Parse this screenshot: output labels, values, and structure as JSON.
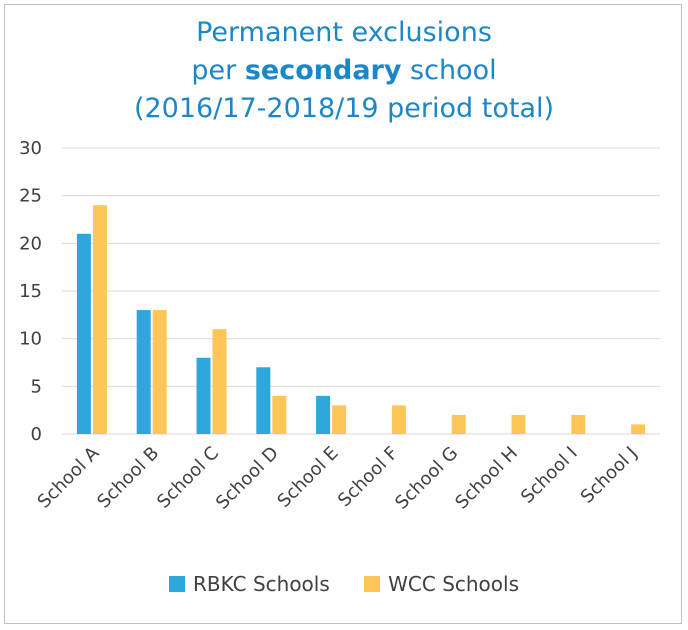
{
  "chart_data": {
    "type": "bar",
    "title_lines": [
      "Permanent exclusions",
      "per",
      "secondary",
      "school",
      "(2016/17-2018/19 period total)"
    ],
    "categories": [
      "School A",
      "School B",
      "School C",
      "School D",
      "School E",
      "School F",
      "School G",
      "School H",
      "School I",
      "School J"
    ],
    "series": [
      {
        "name": "RBKC Schools",
        "color": "#2fa6dc",
        "values": [
          21,
          13,
          8,
          7,
          4,
          null,
          null,
          null,
          null,
          null
        ]
      },
      {
        "name": "WCC Schools",
        "color": "#fec658",
        "values": [
          24,
          13,
          11,
          4,
          3,
          3,
          2,
          2,
          2,
          1
        ]
      }
    ],
    "yticks": [
      "0",
      "5",
      "10",
      "15",
      "20",
      "25",
      "30"
    ],
    "ylim": [
      0,
      30
    ],
    "grid": true,
    "legend": "bottom"
  }
}
